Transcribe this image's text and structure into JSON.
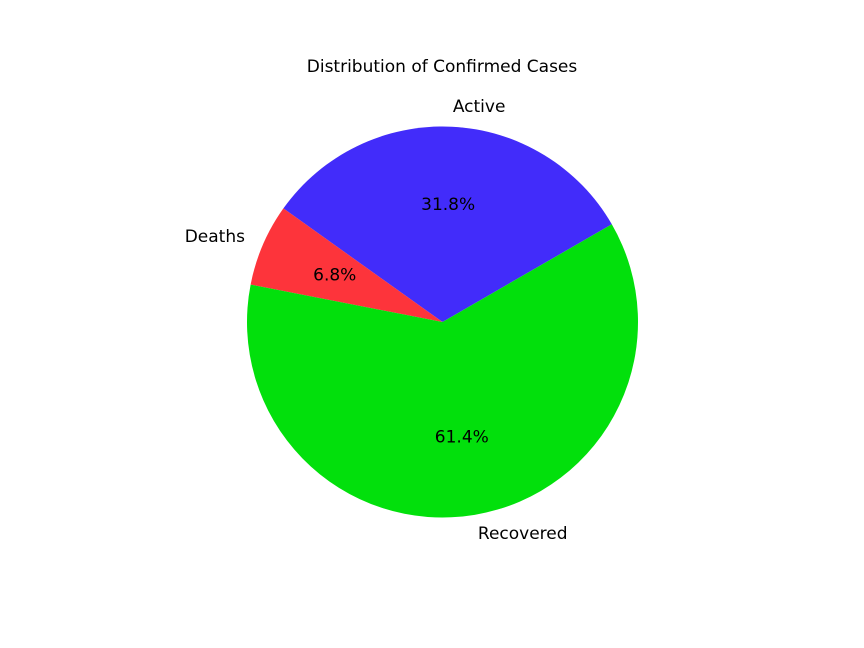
{
  "chart_data": {
    "type": "pie",
    "title": "Distribution of Confirmed Cases",
    "slices": [
      {
        "label": "Active",
        "value": 31.8,
        "pct_label": "31.8%",
        "color": "#422cfa"
      },
      {
        "label": "Deaths",
        "value": 6.8,
        "pct_label": "6.8%",
        "color": "#fd343b"
      },
      {
        "label": "Recovered",
        "value": 61.4,
        "pct_label": "61.4%",
        "color": "#02e00c"
      }
    ],
    "start_angle_deg": 30,
    "direction": "counterclockwise"
  }
}
